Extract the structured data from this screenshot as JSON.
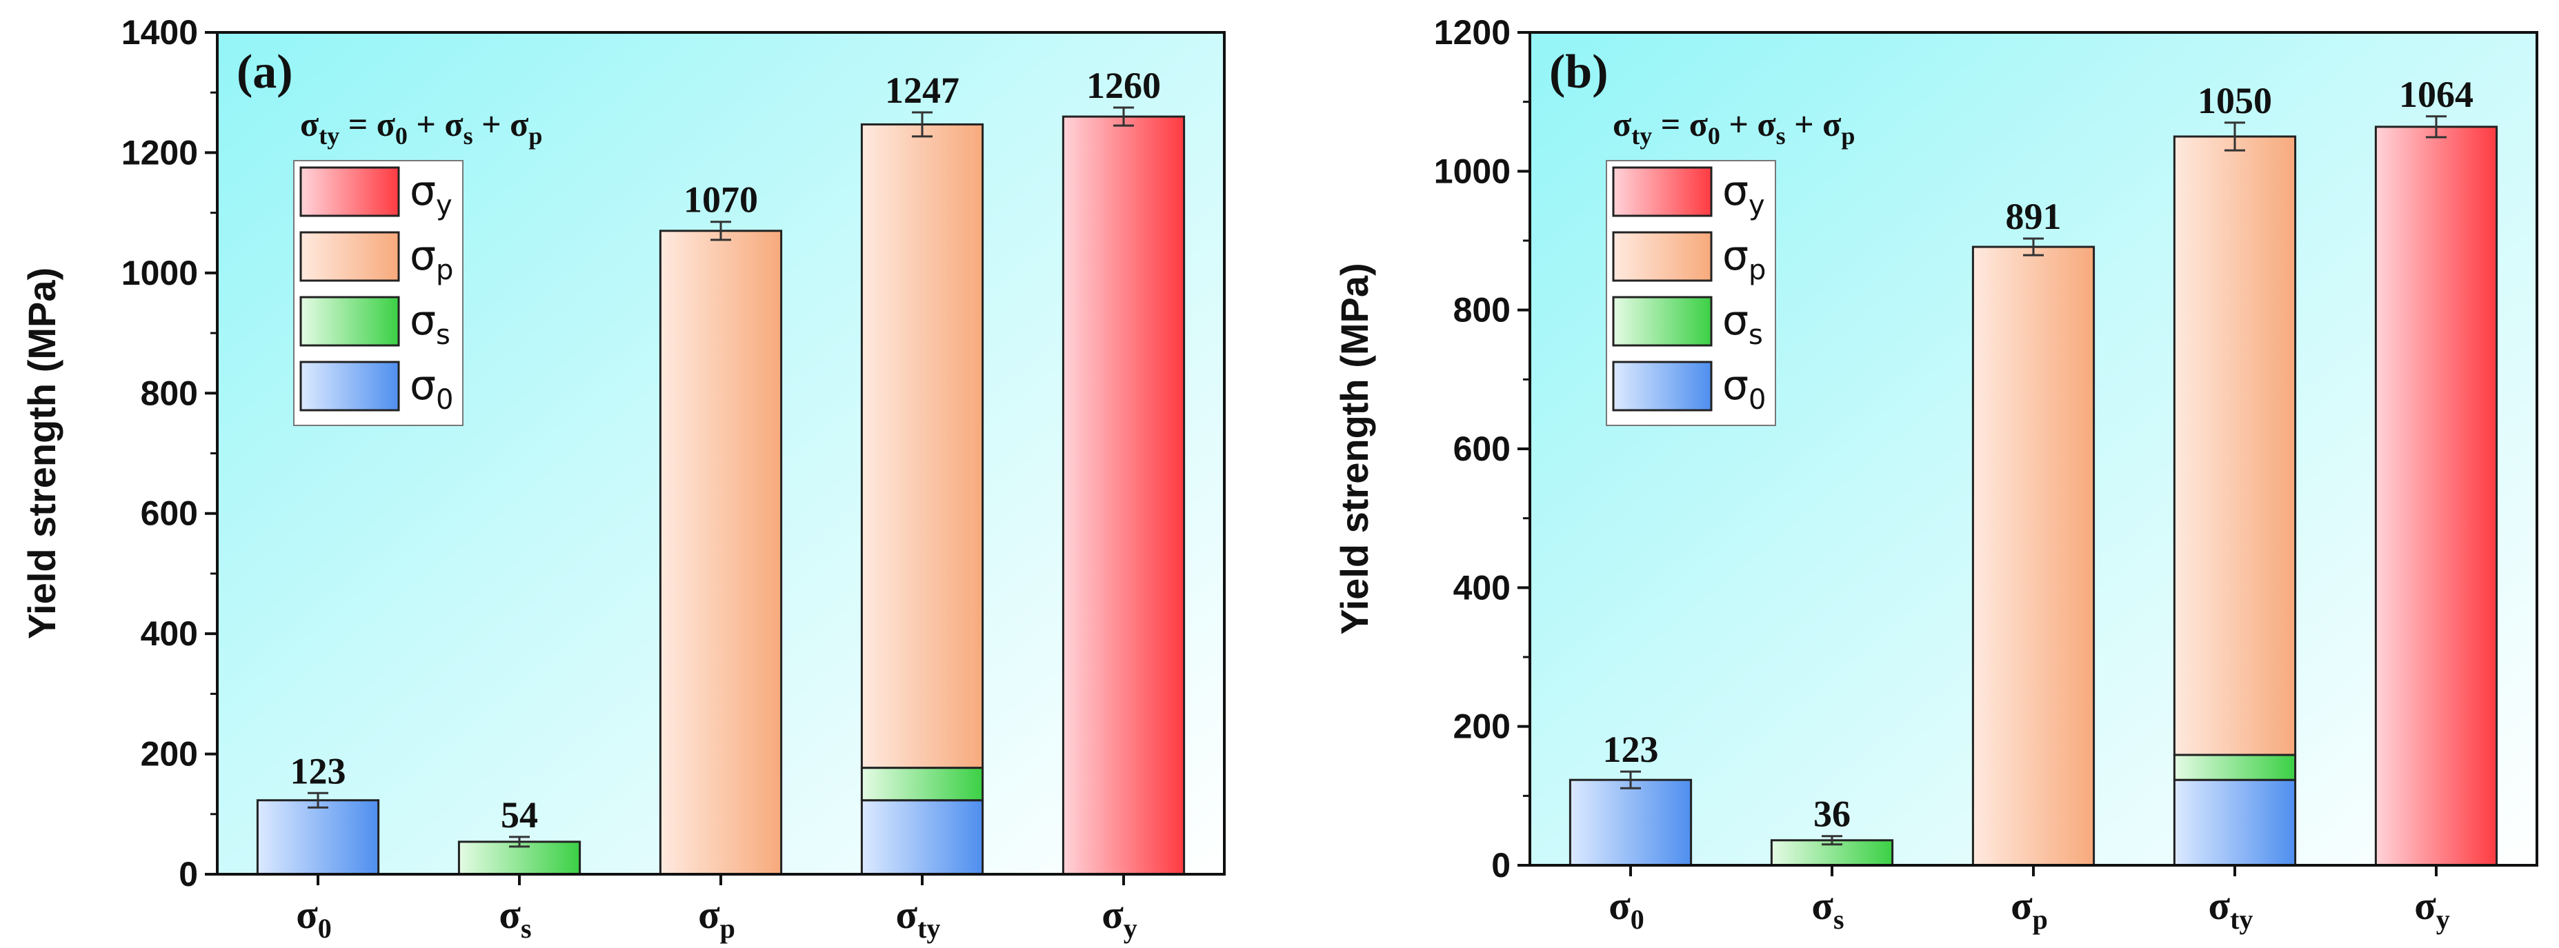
{
  "chart_data": [
    {
      "type": "bar",
      "panel_label": "(a)",
      "ylabel": "Yield strength (MPa)",
      "ylim": [
        0,
        1400
      ],
      "yticks": [
        "0",
        "200",
        "400",
        "600",
        "800",
        "1000",
        "1200",
        "1400"
      ],
      "formula": {
        "lhs": "σ",
        "lhs_sub": "ty",
        "eq": " = ",
        "t1": "σ",
        "t1_sub": "0",
        "p1": " + ",
        "t2": "σ",
        "t2_sub": "s",
        "p2": " + ",
        "t3": "σ",
        "t3_sub": "p"
      },
      "categories": [
        {
          "sym": "σ",
          "sub": "0"
        },
        {
          "sym": "σ",
          "sub": "s"
        },
        {
          "sym": "σ",
          "sub": "p"
        },
        {
          "sym": "σ",
          "sub": "ty"
        },
        {
          "sym": "σ",
          "sub": "y"
        }
      ],
      "bars": [
        {
          "segments": [
            {
              "series": "sigma0",
              "value": 123
            }
          ],
          "label": "123",
          "error": 12
        },
        {
          "segments": [
            {
              "series": "sigmas",
              "value": 54
            }
          ],
          "label": "54",
          "error": 8
        },
        {
          "segments": [
            {
              "series": "sigmap",
              "value": 1070
            }
          ],
          "label": "1070",
          "error": 15
        },
        {
          "segments": [
            {
              "series": "sigma0",
              "value": 123
            },
            {
              "series": "sigmas",
              "value": 54
            },
            {
              "series": "sigmap",
              "value": 1070
            }
          ],
          "label": "1247",
          "error": 20
        },
        {
          "segments": [
            {
              "series": "sigmay",
              "value": 1260
            }
          ],
          "label": "1260",
          "error": 15
        }
      ],
      "legend": [
        {
          "series": "sigmay",
          "sym": "σ",
          "sub": "y"
        },
        {
          "series": "sigmap",
          "sym": "σ",
          "sub": "p"
        },
        {
          "series": "sigmas",
          "sym": "σ",
          "sub": "s"
        },
        {
          "series": "sigma0",
          "sym": "σ",
          "sub": "0"
        }
      ]
    },
    {
      "type": "bar",
      "panel_label": "(b)",
      "ylabel": "Yield strength (MPa)",
      "ylim": [
        0,
        1200
      ],
      "yticks": [
        "0",
        "200",
        "400",
        "600",
        "800",
        "1000",
        "1200"
      ],
      "formula": {
        "lhs": "σ",
        "lhs_sub": "ty",
        "eq": " = ",
        "t1": "σ",
        "t1_sub": "0",
        "p1": " + ",
        "t2": "σ",
        "t2_sub": "s",
        "p2": " + ",
        "t3": "σ",
        "t3_sub": "p"
      },
      "categories": [
        {
          "sym": "σ",
          "sub": "0"
        },
        {
          "sym": "σ",
          "sub": "s"
        },
        {
          "sym": "σ",
          "sub": "p"
        },
        {
          "sym": "σ",
          "sub": "ty"
        },
        {
          "sym": "σ",
          "sub": "y"
        }
      ],
      "bars": [
        {
          "segments": [
            {
              "series": "sigma0",
              "value": 123
            }
          ],
          "label": "123",
          "error": 12
        },
        {
          "segments": [
            {
              "series": "sigmas",
              "value": 36
            }
          ],
          "label": "36",
          "error": 6
        },
        {
          "segments": [
            {
              "series": "sigmap",
              "value": 891
            }
          ],
          "label": "891",
          "error": 12
        },
        {
          "segments": [
            {
              "series": "sigma0",
              "value": 123
            },
            {
              "series": "sigmas",
              "value": 36
            },
            {
              "series": "sigmap",
              "value": 891
            }
          ],
          "label": "1050",
          "error": 20
        },
        {
          "segments": [
            {
              "series": "sigmay",
              "value": 1064
            }
          ],
          "label": "1064",
          "error": 15
        }
      ],
      "legend": [
        {
          "series": "sigmay",
          "sym": "σ",
          "sub": "y"
        },
        {
          "series": "sigmap",
          "sym": "σ",
          "sub": "p"
        },
        {
          "series": "sigmas",
          "sym": "σ",
          "sub": "s"
        },
        {
          "series": "sigma0",
          "sym": "σ",
          "sub": "0"
        }
      ]
    }
  ],
  "colors": {
    "sigma0": [
      "#dbe9ff",
      "#4f8fef"
    ],
    "sigmas": [
      "#e4fbe4",
      "#3bd045"
    ],
    "sigmap": [
      "#ffe9de",
      "#f7aa7c"
    ],
    "sigmay": [
      "#ffd3d8",
      "#ff3b42"
    ],
    "bg_left": "#94f5f7",
    "bg_right": "#ffffff"
  }
}
